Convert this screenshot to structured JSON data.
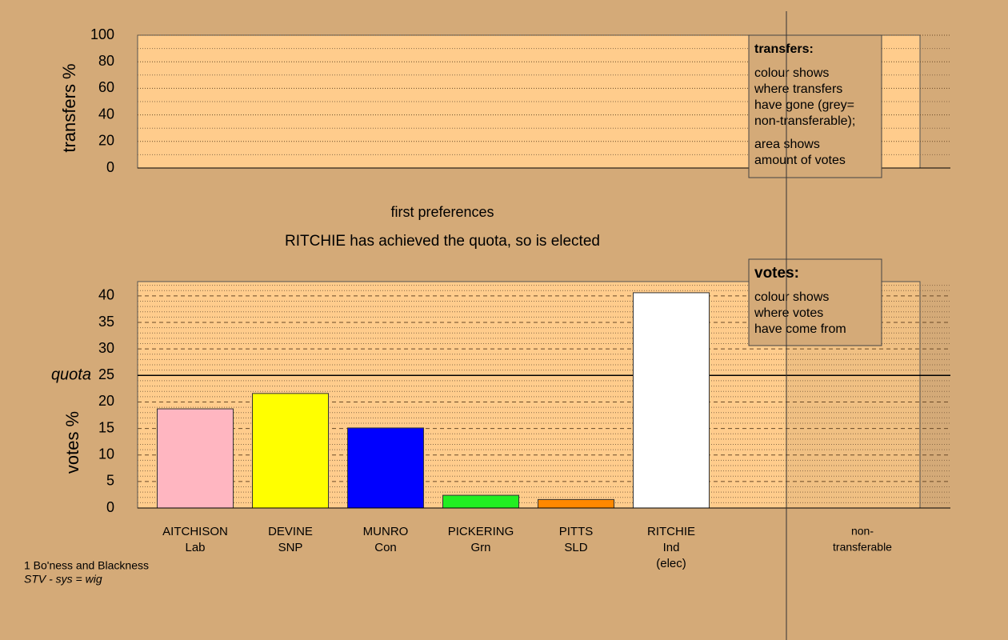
{
  "chart_data": [
    {
      "type": "bar",
      "ylabel": "transfers %",
      "ylim": [
        0,
        100
      ],
      "yticks": [
        0,
        20,
        40,
        60,
        80,
        100
      ],
      "minor_grid": [
        10,
        30,
        50,
        70,
        90
      ],
      "grid": "dotted",
      "legend": {
        "title": "transfers:",
        "paragraphs": [
          [
            "colour shows",
            "where transfers",
            "have gone (grey=",
            "non-transferable);"
          ],
          [
            "area shows",
            "amount of votes"
          ]
        ]
      }
    },
    {
      "type": "bar",
      "title": "first preferences",
      "subtitle": "RITCHIE has achieved the quota, so is elected",
      "ylabel": "votes %",
      "ylim": [
        0,
        42.7
      ],
      "yticks": [
        0,
        5,
        10,
        15,
        20,
        25,
        30,
        35,
        40
      ],
      "minor_grid": [
        1,
        2,
        3,
        4,
        6,
        7,
        8,
        9,
        11,
        12,
        13,
        14,
        16,
        17,
        18,
        19,
        21,
        22,
        23,
        24,
        26,
        27,
        28,
        29,
        31,
        32,
        33,
        34,
        36,
        37,
        38,
        39,
        41,
        42
      ],
      "grid": "dashed",
      "quota": 25,
      "quota_label": "quota",
      "categories": [
        [
          "AITCHISON",
          "Lab"
        ],
        [
          "DEVINE",
          "SNP"
        ],
        [
          "MUNRO",
          "Con"
        ],
        [
          "PICKERING",
          "Grn"
        ],
        [
          "PITTS",
          "SLD"
        ],
        [
          "RITCHIE",
          "Ind",
          "(elec)"
        ],
        [
          "non-",
          "transferable"
        ]
      ],
      "values": [
        18.7,
        21.6,
        15.1,
        2.4,
        1.6,
        40.6,
        null
      ],
      "colors": [
        "#ffb6c1",
        "#ffff00",
        "#0000ff",
        "#22ee22",
        "#ff8800",
        "#ffffff",
        null
      ],
      "legend": {
        "title": "votes:",
        "paragraphs": [
          [
            "colour shows",
            "where votes",
            "have come from"
          ]
        ]
      }
    }
  ],
  "footnote": [
    "1 Bo'ness and Blackness",
    "STV - sys = wig"
  ]
}
